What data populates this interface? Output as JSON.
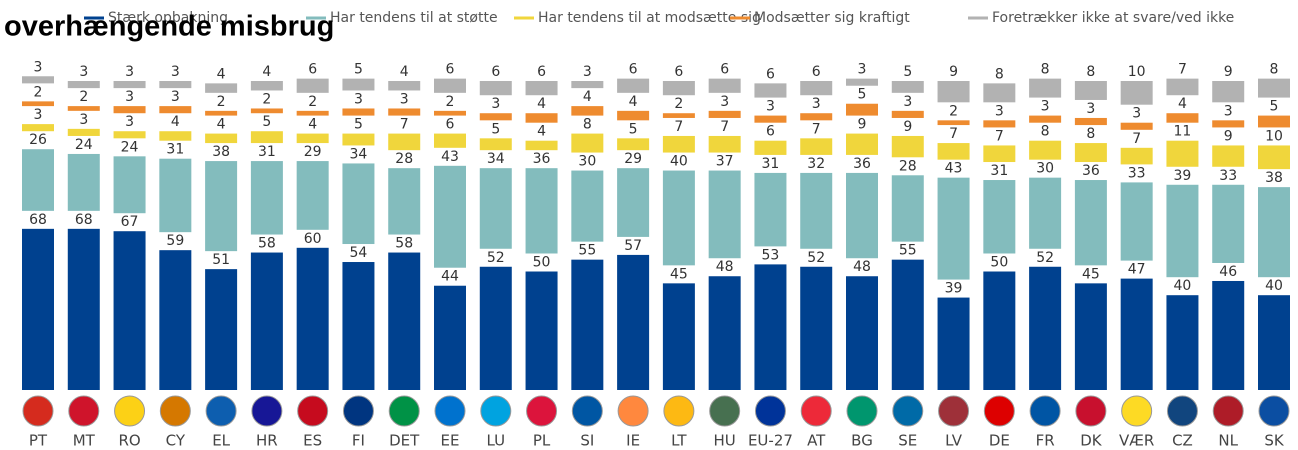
{
  "chart_data": {
    "type": "stacked_bar",
    "title": "overhængende misbrug",
    "categories": [
      "PT",
      "MT",
      "RO",
      "CY",
      "EL",
      "HR",
      "ES",
      "FI",
      "DET",
      "EE",
      "LU",
      "PL",
      "SI",
      "IE",
      "LT",
      "HU",
      "EU-27",
      "AT",
      "BG",
      "SE",
      "LV",
      "DE",
      "FR",
      "DK",
      "VÆR",
      "CZ",
      "NL",
      "SK"
    ],
    "series": [
      {
        "name": "Stærk opbakning",
        "color": "#00418f",
        "values": [
          68,
          68,
          67,
          59,
          51,
          58,
          60,
          54,
          58,
          44,
          52,
          50,
          55,
          57,
          45,
          48,
          53,
          52,
          48,
          55,
          39,
          50,
          52,
          45,
          47,
          40,
          46,
          40
        ]
      },
      {
        "name": "Har tendens til at støtte",
        "color": "#83bcbd",
        "values": [
          26,
          24,
          24,
          31,
          38,
          31,
          29,
          34,
          28,
          43,
          34,
          36,
          30,
          29,
          40,
          37,
          31,
          32,
          36,
          28,
          43,
          31,
          30,
          36,
          33,
          39,
          33,
          38
        ]
      },
      {
        "name": "Har tendens til at modsætte sig",
        "color": "#f0d63c",
        "values": [
          3,
          3,
          3,
          4,
          4,
          5,
          4,
          5,
          7,
          6,
          5,
          4,
          8,
          5,
          7,
          7,
          6,
          7,
          9,
          9,
          7,
          7,
          8,
          8,
          7,
          11,
          9,
          10
        ]
      },
      {
        "name": "Modsætter sig kraftigt",
        "color": "#ee8b2f",
        "values": [
          2,
          2,
          3,
          3,
          2,
          2,
          2,
          3,
          3,
          2,
          3,
          4,
          4,
          4,
          2,
          3,
          3,
          3,
          5,
          3,
          2,
          3,
          3,
          3,
          3,
          4,
          3,
          5
        ]
      },
      {
        "name": "Foretrækker ikke at svare/ved ikke",
        "color": "#b2b2b2",
        "values": [
          3,
          3,
          3,
          3,
          4,
          4,
          6,
          5,
          4,
          6,
          6,
          6,
          3,
          6,
          6,
          6,
          6,
          6,
          3,
          5,
          9,
          8,
          8,
          8,
          10,
          7,
          9,
          8
        ]
      }
    ]
  }
}
